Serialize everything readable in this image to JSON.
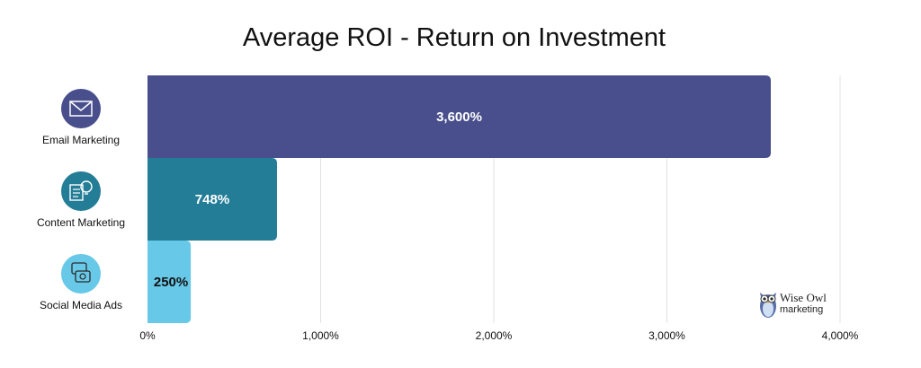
{
  "chart_data": {
    "type": "bar",
    "orientation": "horizontal",
    "title": "Average ROI - Return on Investment",
    "categories": [
      "Email Marketing",
      "Content Marketing",
      "Social Media Ads"
    ],
    "values": [
      3600,
      748,
      250
    ],
    "data_labels": [
      "3,600%",
      "748%",
      "250%"
    ],
    "xlim": [
      0,
      4000
    ],
    "x_ticks": [
      0,
      1000,
      2000,
      3000,
      4000
    ],
    "x_tick_labels": [
      "0%",
      "1,000%",
      "2,000%",
      "3,000%",
      "4,000%"
    ],
    "grid": true,
    "colors": [
      "#484f8c",
      "#237d96",
      "#68c8e8"
    ],
    "label_colors": [
      "#ffffff",
      "#ffffff",
      "#111111"
    ],
    "icons": [
      "envelope-icon",
      "lightbulb-document-icon",
      "social-chat-icon"
    ]
  },
  "logo": {
    "line1": "Wise Owl",
    "line2": "marketing"
  }
}
